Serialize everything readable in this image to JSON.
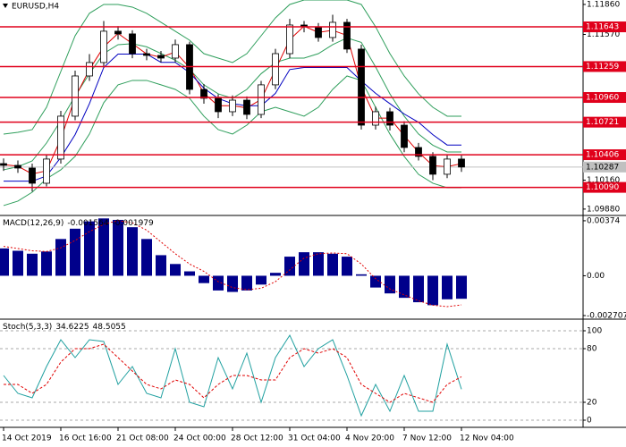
{
  "chart_data": [
    {
      "type": "candlestick",
      "title": "EURUSD,H4",
      "categories": [
        "14 Oct 2019",
        null,
        null,
        null,
        "16 Oct 16:00",
        null,
        null,
        null,
        "21 Oct 08:00",
        null,
        null,
        null,
        "24 Oct 00:00",
        null,
        null,
        null,
        "28 Oct 12:00",
        null,
        null,
        null,
        "31 Oct 04:00",
        null,
        null,
        null,
        "4 Nov 20:00",
        null,
        null,
        null,
        "7 Nov 12:00",
        null,
        null,
        null,
        "12 Nov 04:00"
      ],
      "open": [
        1.1032,
        1.10303,
        1.10277,
        1.1013,
        1.10364,
        1.10779,
        1.11168,
        1.11298,
        1.11601,
        1.11575,
        1.11384,
        1.11367,
        1.11341,
        1.11471,
        1.11038,
        1.10952,
        1.10822,
        1.10934,
        1.10796,
        1.11082,
        1.11384,
        1.11661,
        1.11644,
        1.1154,
        1.11687,
        1.11428,
        1.10692,
        1.10822,
        1.10692,
        1.10476,
        1.1039,
        1.10217,
        1.10364
      ],
      "high": [
        1.1037,
        1.1035,
        1.1032,
        1.1041,
        1.1083,
        1.1122,
        1.1138,
        1.117,
        1.1165,
        1.1161,
        1.1143,
        1.1141,
        1.1152,
        1.115,
        1.1109,
        1.1099,
        1.1098,
        1.1097,
        1.1112,
        1.1143,
        1.1172,
        1.117,
        1.1168,
        1.1176,
        1.1172,
        1.1147,
        1.1087,
        1.1086,
        1.1073,
        1.1052,
        1.1043,
        1.1041,
        1.104
      ],
      "low": [
        1.1025,
        1.1023,
        1.1005,
        1.101,
        1.1032,
        1.1074,
        1.1112,
        1.1125,
        1.1152,
        1.1134,
        1.1132,
        1.113,
        1.113,
        1.1099,
        1.109,
        1.1076,
        1.1078,
        1.1075,
        1.1076,
        1.1104,
        1.1134,
        1.1159,
        1.115,
        1.115,
        1.1139,
        1.1065,
        1.1065,
        1.1064,
        1.1043,
        1.1035,
        1.1016,
        1.1018,
        1.1024
      ],
      "close": [
        1.10303,
        1.10277,
        1.1013,
        1.10364,
        1.10779,
        1.11168,
        1.11298,
        1.11601,
        1.11575,
        1.11384,
        1.11367,
        1.11341,
        1.11471,
        1.11038,
        1.10952,
        1.10822,
        1.10934,
        1.10796,
        1.11082,
        1.11384,
        1.11661,
        1.11644,
        1.1154,
        1.11687,
        1.11428,
        1.10692,
        1.10822,
        1.10692,
        1.10476,
        1.1039,
        1.10217,
        1.10364,
        1.10287
      ],
      "up_color": "#ffffff",
      "down_color": "#000000",
      "series": [
        {
          "color": "#2e9e5b",
          "values": [
            1.10606,
            1.10623,
            1.10649,
            1.10865,
            1.11211,
            1.11557,
            1.11774,
            1.1186,
            1.1186,
            1.11834,
            1.11774,
            1.11687,
            1.11601,
            1.11514,
            1.11384,
            1.11341,
            1.11298,
            1.11384,
            1.11557,
            1.1173,
            1.1186,
            1.11903,
            1.11903,
            1.11903,
            1.11903,
            1.1186,
            1.11644,
            1.11384,
            1.11168,
            1.10995,
            1.10865,
            1.10779,
            1.10779
          ]
        },
        {
          "color": "#2e9e5b",
          "values": [
            1.1026,
            1.1029,
            1.10346,
            1.10519,
            1.10736,
            1.10974,
            1.1119,
            1.11385,
            1.11471,
            1.1148,
            1.1145,
            1.11385,
            1.1132,
            1.11233,
            1.11082,
            1.10995,
            1.10952,
            1.11038,
            1.1119,
            1.11298,
            1.11341,
            1.11341,
            1.11384,
            1.11471,
            1.11536,
            1.11493,
            1.11255,
            1.10995,
            1.10779,
            1.10606,
            1.10498,
            1.10433,
            1.10433
          ]
        },
        {
          "color": "#2e9e5b",
          "values": [
            1.09914,
            1.09957,
            1.10043,
            1.10173,
            1.1026,
            1.1039,
            1.10606,
            1.10909,
            1.11082,
            1.11125,
            1.11125,
            1.11082,
            1.11038,
            1.10952,
            1.10779,
            1.10649,
            1.10606,
            1.10692,
            1.10822,
            1.10865,
            1.10822,
            1.10779,
            1.10865,
            1.11038,
            1.11168,
            1.11125,
            1.10865,
            1.10606,
            1.1039,
            1.10216,
            1.1013,
            1.10087,
            1.10087
          ]
        },
        {
          "color": "#e00000",
          "values": [
            1.1031,
            1.10295,
            1.1022,
            1.1025,
            1.1056,
            1.1096,
            1.1123,
            1.1145,
            1.1158,
            1.1148,
            1.1138,
            1.1135,
            1.114,
            1.1125,
            1.11,
            1.1088,
            1.1088,
            1.1086,
            1.1094,
            1.1123,
            1.1152,
            1.1165,
            1.1159,
            1.1161,
            1.1156,
            1.1106,
            1.1076,
            1.1076,
            1.1059,
            1.1043,
            1.103,
            1.1029,
            1.1032
          ]
        },
        {
          "color": "#0000c0",
          "values": [
            1.1015,
            1.1015,
            1.1015,
            1.102,
            1.1038,
            1.106,
            1.109,
            1.1125,
            1.1138,
            1.1138,
            1.1138,
            1.113,
            1.113,
            1.112,
            1.1105,
            1.1095,
            1.109,
            1.1088,
            1.1088,
            1.11,
            1.1123,
            1.1125,
            1.1125,
            1.1125,
            1.1125,
            1.1112,
            1.11,
            1.109,
            1.108,
            1.1072,
            1.106,
            1.105,
            1.105
          ]
        }
      ],
      "levels": {
        "color": "#e0001b",
        "values": [
          {
            "value": 1.11643,
            "label": "1.11643"
          },
          {
            "value": 1.11259,
            "label": "1.11259"
          },
          {
            "value": 1.1096,
            "label": "1.10960"
          },
          {
            "value": 1.10721,
            "label": "1.10721"
          },
          {
            "value": 1.10406,
            "label": "1.10406"
          },
          {
            "value": 1.1009,
            "label": "1.10090"
          }
        ]
      },
      "current_price": {
        "value": 1.10287,
        "label": "1.10287",
        "color": "#c0c0c0"
      },
      "ylim": [
        1.09827,
        1.11903
      ],
      "yticks": [
        {
          "value": 1.1186,
          "label": "1.11860"
        },
        {
          "value": 1.1157,
          "label": "1.11570"
        },
        {
          "value": 1.1016,
          "label": "1.10160"
        },
        {
          "value": 1.0988,
          "label": "1.09880"
        }
      ],
      "grid": false
    },
    {
      "type": "macd",
      "title": "MACD(12,26,9)",
      "color": "#00008b",
      "values": [
        0.00186,
        0.0017,
        0.0015,
        0.00165,
        0.0025,
        0.0032,
        0.0037,
        0.0039,
        0.0038,
        0.0033,
        0.0025,
        0.0014,
        0.0008,
        0.0003,
        -0.0005,
        -0.001,
        -0.0011,
        -0.001,
        -0.0006,
        0.0002,
        0.0013,
        0.0016,
        0.0016,
        0.0015,
        0.0013,
        0.0001,
        -0.0008,
        -0.0012,
        -0.0015,
        -0.0018,
        -0.002,
        -0.0016,
        -0.001564
      ],
      "signal": {
        "color": "#e00000",
        "values": [
          0.002,
          0.00185,
          0.0017,
          0.00165,
          0.0019,
          0.0024,
          0.003,
          0.0035,
          0.00375,
          0.0036,
          0.0031,
          0.0023,
          0.0015,
          0.0008,
          0.0003,
          -0.0004,
          -0.0008,
          -0.00095,
          -0.00085,
          -0.0004,
          0.0004,
          0.0012,
          0.0015,
          0.00155,
          0.0015,
          0.0008,
          -0.0002,
          -0.0009,
          -0.0013,
          -0.0017,
          -0.002,
          -0.0021,
          -0.001979
        ]
      },
      "ylim": [
        -0.00289,
        0.00404
      ],
      "yticks": [
        0.00374,
        {
          "value": 0,
          "label": "0.00"
        },
        -0.002707
      ],
      "grid": false
    },
    {
      "type": "stochastic",
      "title": "Stoch(5,3,3)",
      "series": [
        {
          "color": "#20a0a0",
          "values": [
            50,
            30,
            25,
            60,
            90,
            70,
            90,
            88,
            40,
            60,
            30,
            25,
            80,
            20,
            15,
            70,
            35,
            75,
            20,
            70,
            95,
            60,
            80,
            90,
            50,
            5,
            40,
            10,
            50,
            10,
            10,
            85,
            34.6225
          ]
        },
        {
          "color": "#e00000",
          "dashed": true,
          "values": [
            40,
            40,
            30,
            40,
            65,
            80,
            80,
            85,
            70,
            55,
            40,
            35,
            45,
            40,
            25,
            40,
            50,
            50,
            45,
            45,
            70,
            80,
            75,
            80,
            70,
            40,
            30,
            20,
            30,
            25,
            20,
            40,
            48.5055
          ]
        }
      ],
      "ylim": [
        -8,
        112
      ],
      "yticks": [
        100,
        80,
        20,
        0
      ],
      "grid": true
    }
  ]
}
